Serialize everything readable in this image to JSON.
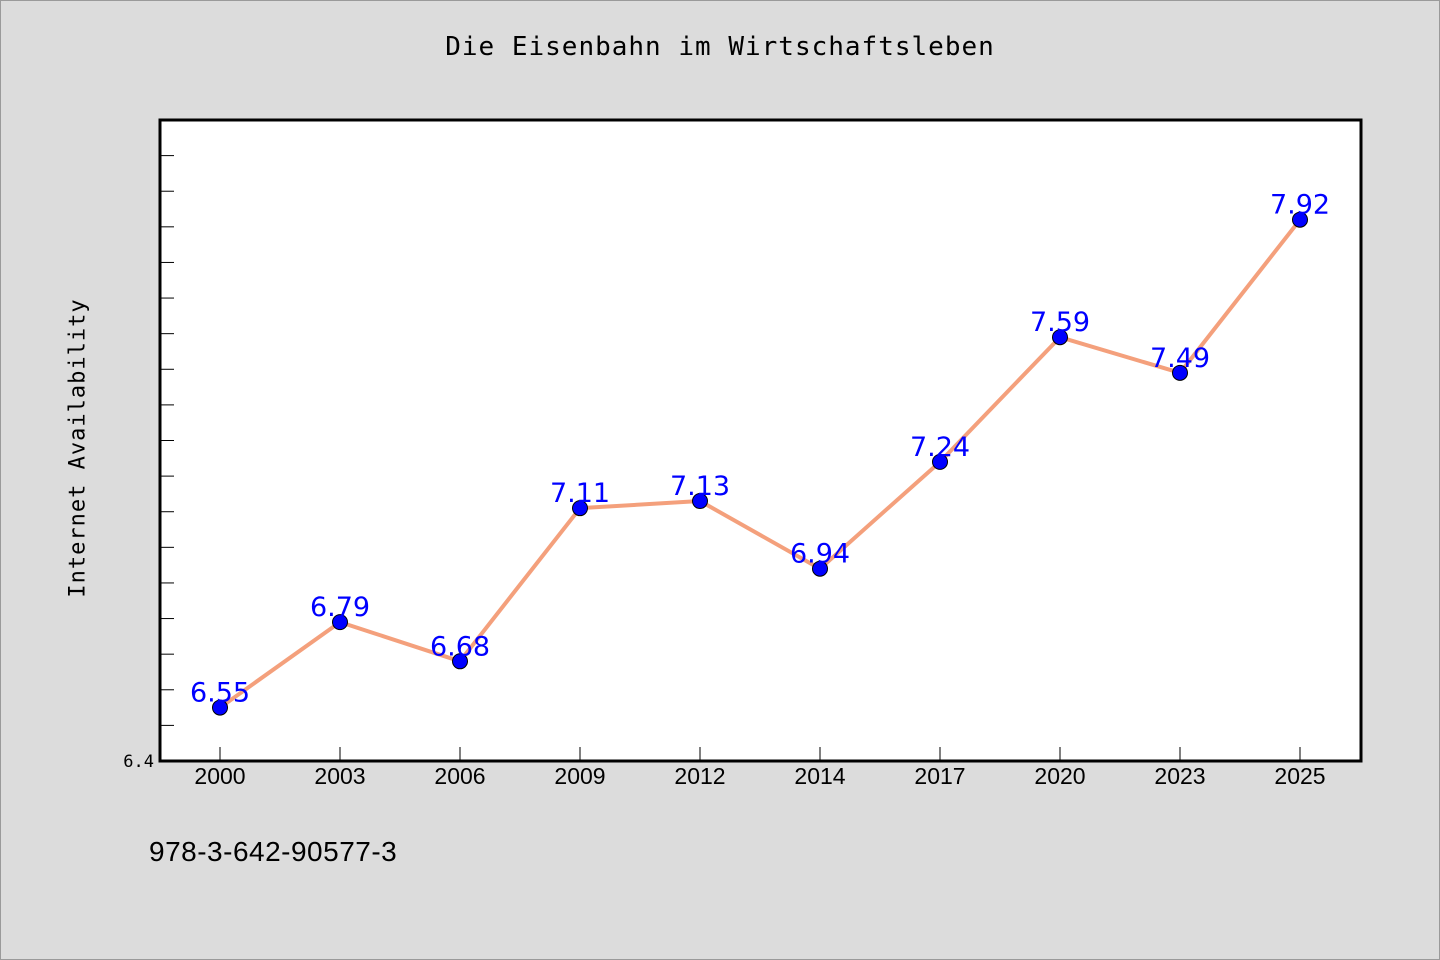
{
  "figure": {
    "footer_text": "978-3-642-90577-3",
    "background_color": "#dcdcdc"
  },
  "chart_data": {
    "type": "line",
    "title": "Die Eisenbahn im Wirtschaftsleben",
    "xlabel": "",
    "ylabel": "Internet Availability",
    "categories": [
      "2000",
      "2003",
      "2006",
      "2009",
      "2012",
      "2014",
      "2017",
      "2020",
      "2023",
      "2025"
    ],
    "series": [
      {
        "values": [
          6.55,
          6.79,
          6.68,
          7.11,
          7.13,
          6.94,
          7.24,
          7.59,
          7.49,
          7.92
        ],
        "labels": [
          "6.55",
          "6.79",
          "6.68",
          "7.11",
          "7.13",
          "6.94",
          "7.24",
          "7.59",
          "7.49",
          "7.92"
        ],
        "line_color": "#f4a07c",
        "marker_color": "#0000ff",
        "label_color": "#0000ff"
      }
    ],
    "ylim": [
      6.4,
      8.2
    ],
    "ytick_labels": [
      "6.4"
    ],
    "grid": false,
    "legend": "none"
  }
}
